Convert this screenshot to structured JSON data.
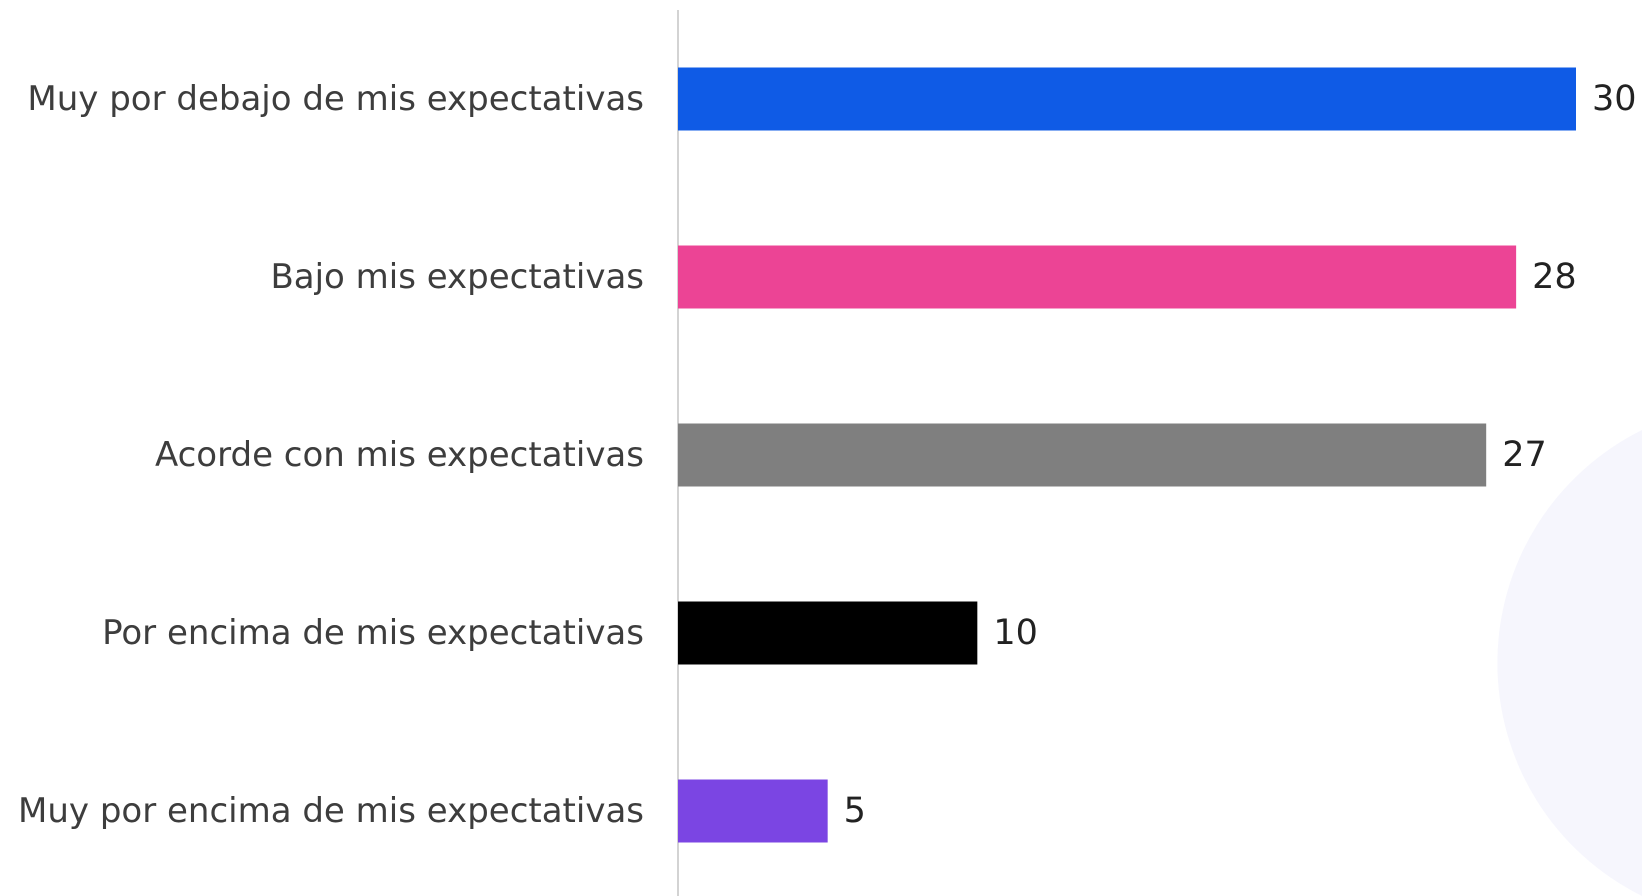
{
  "chart_data": {
    "type": "bar",
    "orientation": "horizontal",
    "categories": [
      "Muy por debajo de mis expectativas",
      "Bajo mis expectativas",
      "Acorde con mis expectativas",
      "Por encima de mis expectativas",
      "Muy por encima de mis expectativas"
    ],
    "values": [
      30,
      28,
      27,
      10,
      5
    ],
    "value_labels": [
      "30",
      "28",
      "27",
      "10",
      "5"
    ],
    "colors": [
      "#0f5be6",
      "#ec4495",
      "#7f7f7f",
      "#000000",
      "#7b45e3"
    ],
    "title": "",
    "xlabel": "",
    "ylabel": "",
    "xlim": [
      0,
      30
    ],
    "grid": false,
    "data_labels": true
  }
}
